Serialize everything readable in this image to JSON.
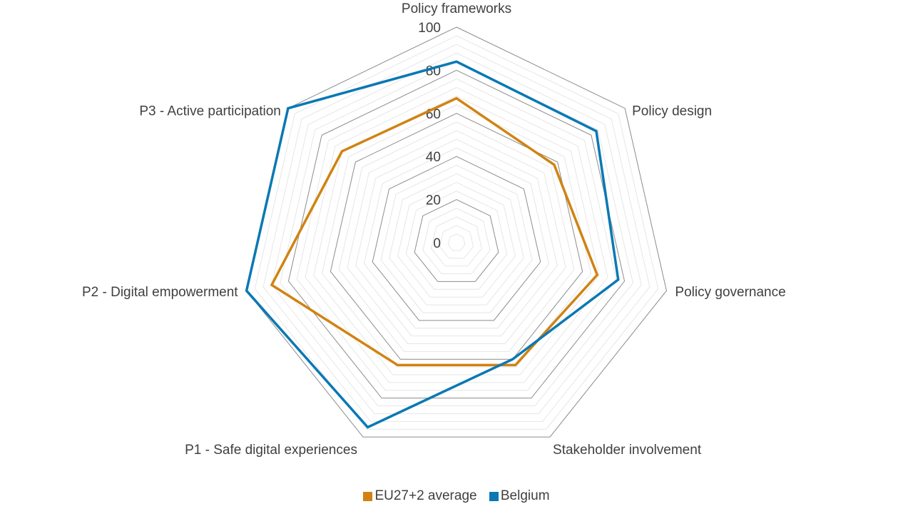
{
  "chart_data": {
    "type": "radar",
    "categories": [
      "Policy frameworks",
      "Policy design",
      "Policy governance",
      "Stakeholder involvement",
      "P1 - Safe digital experiences",
      "P2 - Digital empowerment",
      "P3 - Active participation"
    ],
    "series": [
      {
        "name": "EU27+2 average",
        "color": "#D08312",
        "values": [
          67,
          58,
          67,
          63,
          63,
          88,
          68
        ]
      },
      {
        "name": "Belgium",
        "color": "#0A78B4",
        "values": [
          84,
          83,
          77,
          60,
          95,
          100,
          100
        ]
      }
    ],
    "rlim": [
      0,
      100
    ],
    "ticks": [
      "0",
      "20",
      "40",
      "60",
      "80",
      "100"
    ],
    "grid": true,
    "legend_position": "bottom"
  },
  "legend": {
    "eu_label": "EU27+2 average",
    "be_label": "Belgium"
  }
}
